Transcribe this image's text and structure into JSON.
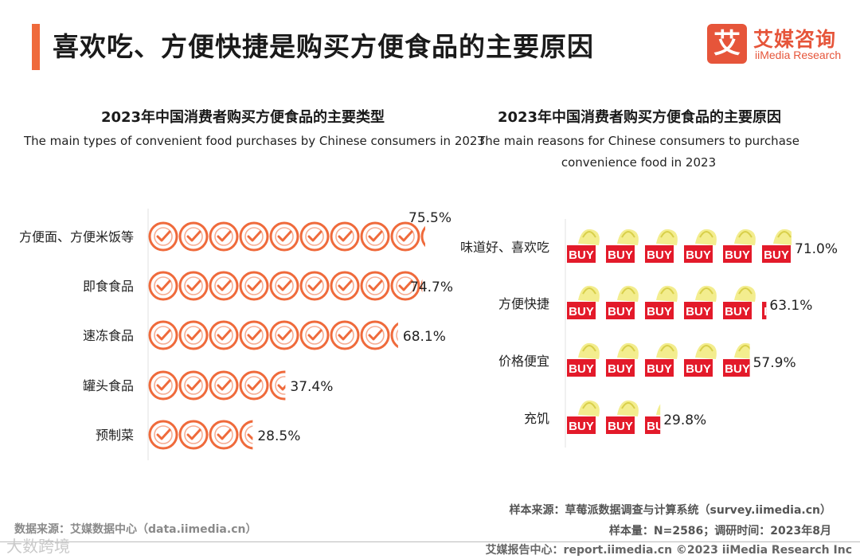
{
  "page": {
    "title": "喜欢吃、方便快捷是购买方便食品的主要原因"
  },
  "logo": {
    "mark": "艾",
    "name_cn": "艾媒咨询",
    "name_en": "iiMedia Research"
  },
  "colors": {
    "accent": "#ef6a3b",
    "check_stroke": "#ef6a3b",
    "buy_red": "#e31a2a",
    "buy_bag": "#f1ea7a"
  },
  "icons": {
    "left_chart": "check-circle-icon",
    "right_chart": "buy-bag-icon"
  },
  "chart_data": [
    {
      "type": "bar",
      "style": "pictograph",
      "title": "2023年中国消费者购买方便食品的主要类型",
      "subtitle": "The main types of convenient food purchases by Chinese consumers in 2023",
      "categories": [
        "方便面、方便米饭等",
        "即食食品",
        "速冻食品",
        "罐头食品",
        "预制菜"
      ],
      "values": [
        75.5,
        74.7,
        68.1,
        37.4,
        28.5
      ],
      "value_labels": [
        "75.5%",
        "74.7%",
        "68.1%",
        "37.4%",
        "28.5%"
      ],
      "unit": "%",
      "xlim": [
        0,
        80
      ]
    },
    {
      "type": "bar",
      "style": "pictograph",
      "title": "2023年中国消费者购买方便食品的主要原因",
      "subtitle": "The main reasons for Chinese consumers to purchase convenience food in 2023",
      "categories": [
        "味道好、喜欢吃",
        "方便快捷",
        "价格便宜",
        "充饥"
      ],
      "values": [
        71.0,
        63.1,
        57.9,
        29.8
      ],
      "value_labels": [
        "71.0%",
        "63.1%",
        "57.9%",
        "29.8%"
      ],
      "unit": "%",
      "xlim": [
        0,
        72
      ]
    }
  ],
  "footer": {
    "data_source": "数据来源：艾媒数据中心（data.iimedia.cn）",
    "sample_source": "样本来源：草莓派数据调查与计算系统（survey.iimedia.cn）",
    "sample_info": "样本量：N=2586；调研时间：2023年8月",
    "credit": "艾媒报告中心：report.iimedia.cn  ©2023  iiMedia Research Inc",
    "watermark": "大数跨境"
  }
}
